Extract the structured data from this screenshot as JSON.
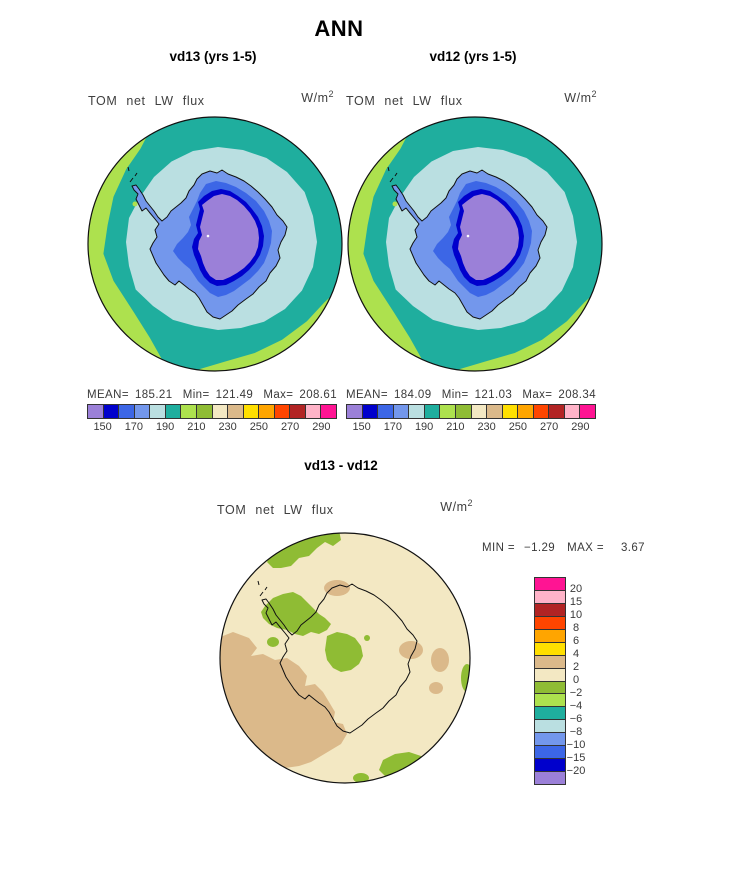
{
  "page_title": "ANN",
  "top_panels": [
    {
      "id": "vd13",
      "title": "vd13 (yrs 1-5)",
      "field_label": "TOM net LW flux",
      "units_base": "W/m",
      "units_exponent": "2",
      "stats": [
        {
          "label": "MEAN=",
          "value": "185.21"
        },
        {
          "label": "Min=",
          "value": "121.49"
        },
        {
          "label": "Max=",
          "value": "208.61"
        }
      ],
      "colorbar_tick_labels": [
        "150",
        "170",
        "190",
        "210",
        "230",
        "250",
        "270",
        "290"
      ]
    },
    {
      "id": "vd12",
      "title": "vd12 (yrs 1-5)",
      "field_label": "TOM net LW flux",
      "units_base": "W/m",
      "units_exponent": "2",
      "stats": [
        {
          "label": "MEAN=",
          "value": "184.09"
        },
        {
          "label": "Min=",
          "value": "121.03"
        },
        {
          "label": "Max=",
          "value": "208.34"
        }
      ],
      "colorbar_tick_labels": [
        "150",
        "170",
        "190",
        "210",
        "230",
        "250",
        "270",
        "290"
      ]
    }
  ],
  "diff_panel": {
    "title": "vd13 - vd12",
    "field_label": "TOM net LW flux",
    "units_base": "W/m",
    "units_exponent": "2",
    "stats": [
      {
        "label": "MIN =",
        "value": "−1.29"
      },
      {
        "label": "MAX =",
        "value": "3.67"
      }
    ],
    "colorbar_tick_labels": [
      "20",
      "15",
      "10",
      "8",
      "6",
      "4",
      "2",
      "0",
      "−2",
      "−4",
      "−6",
      "−8",
      "−10",
      "−15",
      "−20"
    ]
  },
  "palette": {
    "flux_scale": [
      "#9B80D8",
      "#0000CC",
      "#3C66E6",
      "#7397EC",
      "#BADFE1",
      "#1FAE9E",
      "#ADE14E",
      "#8FBC34",
      "#F3E8C3",
      "#DBB98A",
      "#FFDF00",
      "#FFA500",
      "#FF4500",
      "#B22424",
      "#FFB3C8",
      "#FF1493"
    ],
    "diff_scale_top_to_bottom": [
      "#FF1493",
      "#FFB3C8",
      "#B22424",
      "#FF4500",
      "#FFA500",
      "#FFDF00",
      "#DBB98A",
      "#F3E8C3",
      "#8FBC34",
      "#ADE14E",
      "#1FAE9E",
      "#BADFE1",
      "#7397EC",
      "#3C66E6",
      "#0000CC",
      "#9B80D8"
    ],
    "coastline": "#111111",
    "map_outline": "#111111",
    "text": "#3f3f3f"
  },
  "chart_data": [
    {
      "type": "heatmap",
      "subtype": "south-polar-stereographic-filled-contour-map",
      "season": "ANN",
      "title": "vd13 (yrs 1-5)",
      "variable": "TOM net LW flux",
      "units": "W/m2",
      "stats": {
        "mean": 185.21,
        "min": 121.49,
        "max": 208.61
      },
      "contour_interval": 10,
      "colorbar_ticks": [
        150,
        170,
        190,
        210,
        230,
        250,
        270,
        290
      ],
      "legend_position": "below",
      "notes": "Ocean mostly 190-200 (teal) with a 200-210 band (yellow-green) near the domain edge, widest on the west side; 180-190 ring (pale cyan) around the coast; ice sheet values drop inland through 170-180 (cornflower), 160-170 (royal blue), 150-160 (dark blue) to an interior plateau below 150 (purple)."
    },
    {
      "type": "heatmap",
      "subtype": "south-polar-stereographic-filled-contour-map",
      "season": "ANN",
      "title": "vd12 (yrs 1-5)",
      "variable": "TOM net LW flux",
      "units": "W/m2",
      "stats": {
        "mean": 184.09,
        "min": 121.03,
        "max": 208.34
      },
      "contour_interval": 10,
      "colorbar_ticks": [
        150,
        170,
        190,
        210,
        230,
        250,
        270,
        290
      ],
      "legend_position": "below",
      "notes": "Nearly identical pattern to vd13 panel."
    },
    {
      "type": "heatmap",
      "subtype": "south-polar-stereographic-filled-contour-map",
      "title": "vd13 - vd12",
      "variable": "TOM net LW flux",
      "units": "W/m2",
      "stats": {
        "min": -1.29,
        "max": 3.67
      },
      "colorbar_ticks": [
        20,
        15,
        10,
        8,
        6,
        4,
        2,
        0,
        -2,
        -4,
        -6,
        -8,
        -10,
        -15,
        -20
      ],
      "legend_position": "right",
      "notes": "Difference field mostly 0 to 2 (cream); patches of 2 to 4 (tan) over West Antarctica and the southwest ocean plus small spots east; patches of -2 to 0 (green) at the northern edge, around the Antarctic Peninsula, in the continental interior and at the south/east edges."
    }
  ]
}
